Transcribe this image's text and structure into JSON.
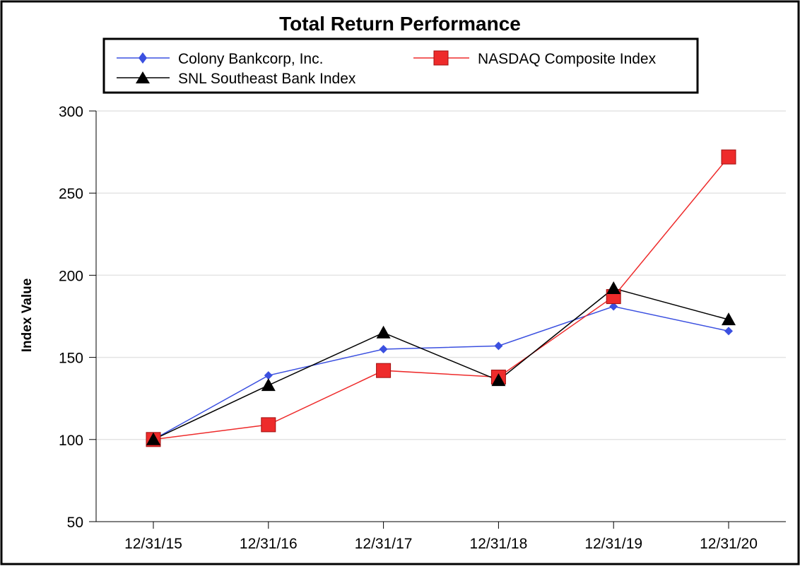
{
  "chart_data": {
    "type": "line",
    "title": "Total Return Performance",
    "xlabel": "",
    "ylabel": "Index Value",
    "categories": [
      "12/31/15",
      "12/31/16",
      "12/31/17",
      "12/31/18",
      "12/31/19",
      "12/31/20"
    ],
    "yticks": [
      50,
      100,
      150,
      200,
      250,
      300
    ],
    "ylim": [
      50,
      300
    ],
    "grid": true,
    "legend_position": "top",
    "series": [
      {
        "name": "Colony Bankcorp, Inc.",
        "marker": "diamond",
        "color": "#3b50e0",
        "values": [
          100,
          139,
          155,
          157,
          181,
          166
        ]
      },
      {
        "name": "NASDAQ Composite Index",
        "marker": "square",
        "color": "#ee2b2b",
        "values": [
          100,
          109,
          142,
          138,
          187,
          272
        ]
      },
      {
        "name": "SNL Southeast Bank Index",
        "marker": "triangle",
        "color": "#000000",
        "values": [
          100,
          133,
          165,
          136,
          192,
          173
        ]
      }
    ]
  }
}
